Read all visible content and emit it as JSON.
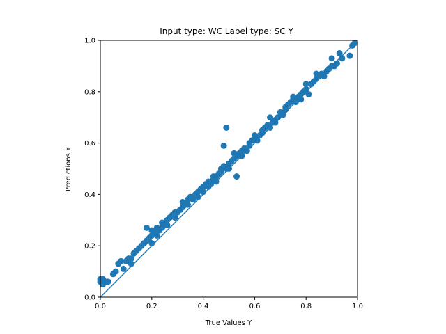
{
  "chart_data": {
    "type": "scatter",
    "title": "Input type: WC Label type: SC    Y",
    "xlabel": "True Values Y",
    "ylabel": "Predictions Y",
    "xlim": [
      0,
      1
    ],
    "ylim": [
      0,
      1
    ],
    "xticks": [
      "0.0",
      "0.2",
      "0.4",
      "0.6",
      "0.8",
      "1.0"
    ],
    "yticks": [
      "0.0",
      "0.2",
      "0.4",
      "0.6",
      "0.8",
      "1.0"
    ],
    "grid": false,
    "legend": "none",
    "color": "#1f77b4",
    "reference_line": [
      [
        0,
        0
      ],
      [
        1,
        1
      ]
    ],
    "points": [
      [
        0.0,
        0.06
      ],
      [
        0.01,
        0.07
      ],
      [
        0.0,
        0.07
      ],
      [
        0.02,
        0.06
      ],
      [
        0.01,
        0.05
      ],
      [
        0.03,
        0.06
      ],
      [
        0.05,
        0.09
      ],
      [
        0.06,
        0.1
      ],
      [
        0.07,
        0.13
      ],
      [
        0.08,
        0.14
      ],
      [
        0.09,
        0.11
      ],
      [
        0.1,
        0.14
      ],
      [
        0.11,
        0.15
      ],
      [
        0.12,
        0.15
      ],
      [
        0.13,
        0.17
      ],
      [
        0.14,
        0.18
      ],
      [
        0.15,
        0.19
      ],
      [
        0.16,
        0.2
      ],
      [
        0.17,
        0.21
      ],
      [
        0.18,
        0.27
      ],
      [
        0.18,
        0.22
      ],
      [
        0.19,
        0.23
      ],
      [
        0.2,
        0.24
      ],
      [
        0.2,
        0.26
      ],
      [
        0.21,
        0.25
      ],
      [
        0.22,
        0.27
      ],
      [
        0.22,
        0.24
      ],
      [
        0.23,
        0.26
      ],
      [
        0.24,
        0.29
      ],
      [
        0.24,
        0.27
      ],
      [
        0.25,
        0.28
      ],
      [
        0.26,
        0.3
      ],
      [
        0.27,
        0.31
      ],
      [
        0.28,
        0.32
      ],
      [
        0.29,
        0.31
      ],
      [
        0.3,
        0.33
      ],
      [
        0.31,
        0.34
      ],
      [
        0.32,
        0.35
      ],
      [
        0.32,
        0.37
      ],
      [
        0.33,
        0.36
      ],
      [
        0.34,
        0.38
      ],
      [
        0.35,
        0.39
      ],
      [
        0.36,
        0.38
      ],
      [
        0.37,
        0.4
      ],
      [
        0.38,
        0.39
      ],
      [
        0.38,
        0.41
      ],
      [
        0.39,
        0.42
      ],
      [
        0.4,
        0.43
      ],
      [
        0.41,
        0.44
      ],
      [
        0.42,
        0.45
      ],
      [
        0.43,
        0.44
      ],
      [
        0.44,
        0.46
      ],
      [
        0.45,
        0.45
      ],
      [
        0.45,
        0.47
      ],
      [
        0.46,
        0.48
      ],
      [
        0.47,
        0.49
      ],
      [
        0.47,
        0.5
      ],
      [
        0.48,
        0.51
      ],
      [
        0.48,
        0.59
      ],
      [
        0.49,
        0.5
      ],
      [
        0.49,
        0.66
      ],
      [
        0.5,
        0.52
      ],
      [
        0.51,
        0.53
      ],
      [
        0.52,
        0.54
      ],
      [
        0.53,
        0.47
      ],
      [
        0.53,
        0.55
      ],
      [
        0.54,
        0.56
      ],
      [
        0.55,
        0.57
      ],
      [
        0.56,
        0.58
      ],
      [
        0.57,
        0.57
      ],
      [
        0.58,
        0.6
      ],
      [
        0.59,
        0.61
      ],
      [
        0.6,
        0.62
      ],
      [
        0.61,
        0.61
      ],
      [
        0.62,
        0.63
      ],
      [
        0.63,
        0.64
      ],
      [
        0.64,
        0.66
      ],
      [
        0.65,
        0.67
      ],
      [
        0.66,
        0.66
      ],
      [
        0.67,
        0.68
      ],
      [
        0.68,
        0.69
      ],
      [
        0.69,
        0.7
      ],
      [
        0.7,
        0.72
      ],
      [
        0.71,
        0.71
      ],
      [
        0.72,
        0.73
      ],
      [
        0.73,
        0.75
      ],
      [
        0.74,
        0.76
      ],
      [
        0.75,
        0.77
      ],
      [
        0.76,
        0.76
      ],
      [
        0.77,
        0.78
      ],
      [
        0.78,
        0.79
      ],
      [
        0.79,
        0.8
      ],
      [
        0.8,
        0.81
      ],
      [
        0.81,
        0.79
      ],
      [
        0.82,
        0.83
      ],
      [
        0.83,
        0.84
      ],
      [
        0.84,
        0.85
      ],
      [
        0.85,
        0.86
      ],
      [
        0.86,
        0.87
      ],
      [
        0.87,
        0.86
      ],
      [
        0.88,
        0.88
      ],
      [
        0.89,
        0.89
      ],
      [
        0.9,
        0.9
      ],
      [
        0.91,
        0.9
      ],
      [
        0.92,
        0.91
      ],
      [
        0.93,
        0.95
      ],
      [
        0.94,
        0.93
      ],
      [
        0.97,
        0.94
      ],
      [
        0.98,
        0.98
      ],
      [
        0.99,
        0.99
      ],
      [
        0.12,
        0.13
      ],
      [
        0.2,
        0.21
      ],
      [
        0.26,
        0.28
      ],
      [
        0.34,
        0.36
      ],
      [
        0.4,
        0.41
      ],
      [
        0.44,
        0.47
      ],
      [
        0.5,
        0.5
      ],
      [
        0.55,
        0.55
      ],
      [
        0.6,
        0.63
      ],
      [
        0.63,
        0.65
      ],
      [
        0.68,
        0.68
      ],
      [
        0.72,
        0.74
      ],
      [
        0.75,
        0.78
      ],
      [
        0.8,
        0.83
      ],
      [
        0.84,
        0.87
      ],
      [
        0.9,
        0.93
      ],
      [
        0.29,
        0.33
      ],
      [
        0.42,
        0.43
      ],
      [
        0.52,
        0.56
      ],
      [
        0.58,
        0.59
      ],
      [
        0.66,
        0.7
      ],
      [
        0.78,
        0.77
      ]
    ]
  }
}
